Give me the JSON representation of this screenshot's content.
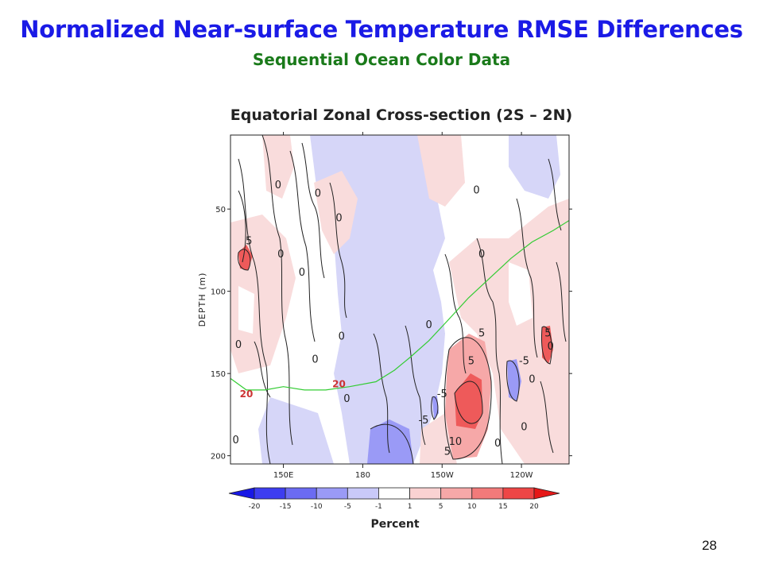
{
  "slide": {
    "title": "Normalized Near-surface Temperature RMSE Differences",
    "subtitle": "Sequential Ocean Color Data",
    "page_number": "28"
  },
  "chart_data": {
    "type": "heatmap",
    "title": "Equatorial Zonal Cross-section (2S – 2N)",
    "ylabel": "DEPTH (m)",
    "xlabel": "",
    "x_ticks": [
      "150E",
      "180",
      "150W",
      "120W"
    ],
    "x_tick_values": [
      150,
      180,
      210,
      240
    ],
    "xlim": [
      130,
      258
    ],
    "y_ticks": [
      "50",
      "100",
      "150",
      "200"
    ],
    "y_tick_values": [
      50,
      100,
      150,
      200
    ],
    "ylim": [
      5,
      205
    ],
    "y_inverted": true,
    "grid": false,
    "colorbar": {
      "label": "Percent",
      "bounds": [
        "-20",
        "-15",
        "-10",
        "-5",
        "-1",
        "1",
        "5",
        "10",
        "15",
        "20"
      ],
      "colors": [
        "#1818e6",
        "#3d3df0",
        "#6b6bf2",
        "#9a9af6",
        "#c9c9f9",
        "#ffffff",
        "#fad2d2",
        "#f6a8a8",
        "#f27a7a",
        "#ee4646",
        "#e61818"
      ],
      "placement": "bottom"
    },
    "contour_labels": [
      {
        "text": "5",
        "x": 137,
        "y": 69
      },
      {
        "text": "0",
        "x": 148,
        "y": 35
      },
      {
        "text": "0",
        "x": 163,
        "y": 40
      },
      {
        "text": "0",
        "x": 171,
        "y": 55
      },
      {
        "text": "0",
        "x": 149,
        "y": 77
      },
      {
        "text": "0",
        "x": 157,
        "y": 88
      },
      {
        "text": "0",
        "x": 162,
        "y": 141
      },
      {
        "text": "0",
        "x": 133,
        "y": 132
      },
      {
        "text": "0",
        "x": 172,
        "y": 127
      },
      {
        "text": "0",
        "x": 174,
        "y": 165
      },
      {
        "text": "0",
        "x": 205,
        "y": 120
      },
      {
        "text": "0",
        "x": 225,
        "y": 77
      },
      {
        "text": "0",
        "x": 223,
        "y": 38
      },
      {
        "text": "0",
        "x": 244,
        "y": 153
      },
      {
        "text": "0",
        "x": 241,
        "y": 182
      },
      {
        "text": "0",
        "x": 251,
        "y": 133
      },
      {
        "text": "0",
        "x": 231,
        "y": 192
      },
      {
        "text": "0",
        "x": 132,
        "y": 190
      },
      {
        "text": "5",
        "x": 225,
        "y": 125
      },
      {
        "text": "5",
        "x": 221,
        "y": 142
      },
      {
        "text": "5",
        "x": 250,
        "y": 125
      },
      {
        "text": "-5",
        "x": 241,
        "y": 142
      },
      {
        "text": "-5",
        "x": 210,
        "y": 162
      },
      {
        "text": "-5",
        "x": 203,
        "y": 178
      },
      {
        "text": "10",
        "x": 215,
        "y": 191
      },
      {
        "text": "5",
        "x": 212,
        "y": 197
      },
      {
        "text": "20",
        "x": 136,
        "y": 162
      },
      {
        "text": "20",
        "x": 171,
        "y": 156
      }
    ],
    "reference_line": {
      "color": "#33cc33",
      "x": [
        130,
        136,
        143,
        150,
        158,
        166,
        175,
        185,
        192,
        198,
        205,
        212,
        220,
        228,
        236,
        244,
        252,
        258
      ],
      "y": [
        153,
        160,
        160,
        158,
        160,
        160,
        158,
        155,
        148,
        140,
        130,
        118,
        104,
        92,
        80,
        70,
        63,
        57
      ]
    }
  }
}
